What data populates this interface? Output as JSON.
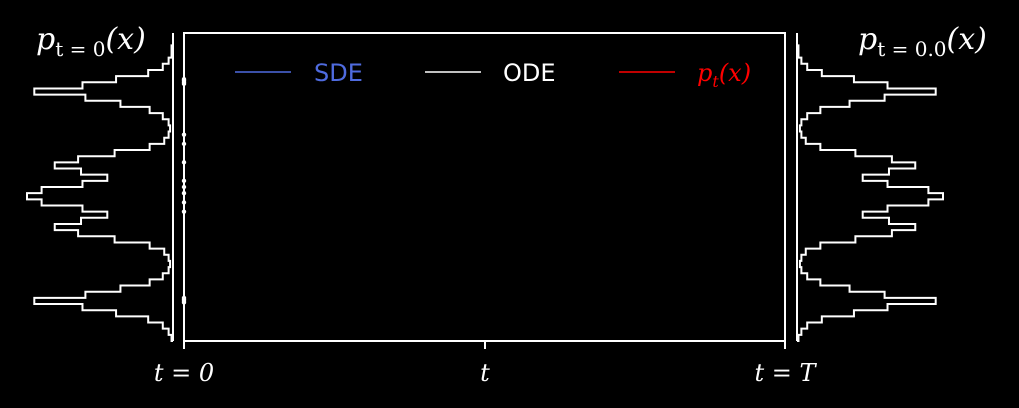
{
  "chart_data": {
    "type": "line",
    "title": "",
    "xlabel": "",
    "ylabel": "",
    "xticks": [
      "t = 0",
      "t",
      "t = T"
    ],
    "left_histogram": {
      "title_main": "p",
      "title_sub": "t = 0",
      "title_arg": "(x)",
      "y": [
        0.0,
        0.02,
        0.04,
        0.06,
        0.08,
        0.1,
        0.12,
        0.14,
        0.16,
        0.18,
        0.2,
        0.22,
        0.24,
        0.26,
        0.28,
        0.3,
        0.32,
        0.34,
        0.36,
        0.38,
        0.4,
        0.42,
        0.44,
        0.46,
        0.48,
        0.5,
        0.52,
        0.54,
        0.56,
        0.58,
        0.6,
        0.62,
        0.64,
        0.66,
        0.68,
        0.7,
        0.72,
        0.74,
        0.76,
        0.78,
        0.8,
        0.82,
        0.84,
        0.86,
        0.88,
        0.9,
        0.92,
        0.94,
        0.96,
        0.98
      ],
      "density": [
        0.0,
        0.0,
        0.01,
        0.01,
        0.03,
        0.07,
        0.17,
        0.39,
        0.62,
        0.95,
        0.6,
        0.36,
        0.16,
        0.07,
        0.03,
        0.02,
        0.03,
        0.06,
        0.16,
        0.4,
        0.65,
        0.81,
        0.63,
        0.45,
        0.62,
        0.9,
        1.0,
        0.9,
        0.62,
        0.45,
        0.63,
        0.81,
        0.65,
        0.4,
        0.16,
        0.06,
        0.03,
        0.02,
        0.03,
        0.07,
        0.16,
        0.36,
        0.6,
        0.95,
        0.62,
        0.39,
        0.17,
        0.07,
        0.03,
        0.01
      ],
      "scatter_y": [
        0.15,
        0.155,
        0.16,
        0.165,
        0.33,
        0.36,
        0.42,
        0.48,
        0.5,
        0.52,
        0.55,
        0.58,
        0.86,
        0.865,
        0.87,
        0.875
      ]
    },
    "right_histogram": {
      "title_main": "p",
      "title_sub": "t = 0.0",
      "title_arg": "(x)",
      "y": [
        0.0,
        0.02,
        0.04,
        0.06,
        0.08,
        0.1,
        0.12,
        0.14,
        0.16,
        0.18,
        0.2,
        0.22,
        0.24,
        0.26,
        0.28,
        0.3,
        0.32,
        0.34,
        0.36,
        0.38,
        0.4,
        0.42,
        0.44,
        0.46,
        0.48,
        0.5,
        0.52,
        0.54,
        0.56,
        0.58,
        0.6,
        0.62,
        0.64,
        0.66,
        0.68,
        0.7,
        0.72,
        0.74,
        0.76,
        0.78,
        0.8,
        0.82,
        0.84,
        0.86,
        0.88,
        0.9,
        0.92,
        0.94,
        0.96,
        0.98
      ],
      "density": [
        0.0,
        0.0,
        0.01,
        0.01,
        0.03,
        0.07,
        0.17,
        0.39,
        0.62,
        0.95,
        0.6,
        0.36,
        0.16,
        0.07,
        0.03,
        0.02,
        0.03,
        0.06,
        0.16,
        0.4,
        0.65,
        0.81,
        0.63,
        0.45,
        0.62,
        0.9,
        1.0,
        0.9,
        0.62,
        0.45,
        0.63,
        0.81,
        0.65,
        0.4,
        0.16,
        0.06,
        0.03,
        0.02,
        0.03,
        0.07,
        0.16,
        0.36,
        0.6,
        0.95,
        0.62,
        0.39,
        0.17,
        0.07,
        0.03,
        0.01
      ]
    },
    "legend": {
      "placement": "top",
      "entries": [
        {
          "label": "SDE",
          "color": "#4f6bdf"
        },
        {
          "label": "ODE",
          "color": "#ffffff"
        },
        {
          "label_main": "p",
          "label_sub": "t",
          "label_arg": "(x)",
          "color": "#ff0000"
        }
      ]
    },
    "grid": false
  },
  "colors": {
    "background": "#000000",
    "foreground": "#ffffff"
  }
}
